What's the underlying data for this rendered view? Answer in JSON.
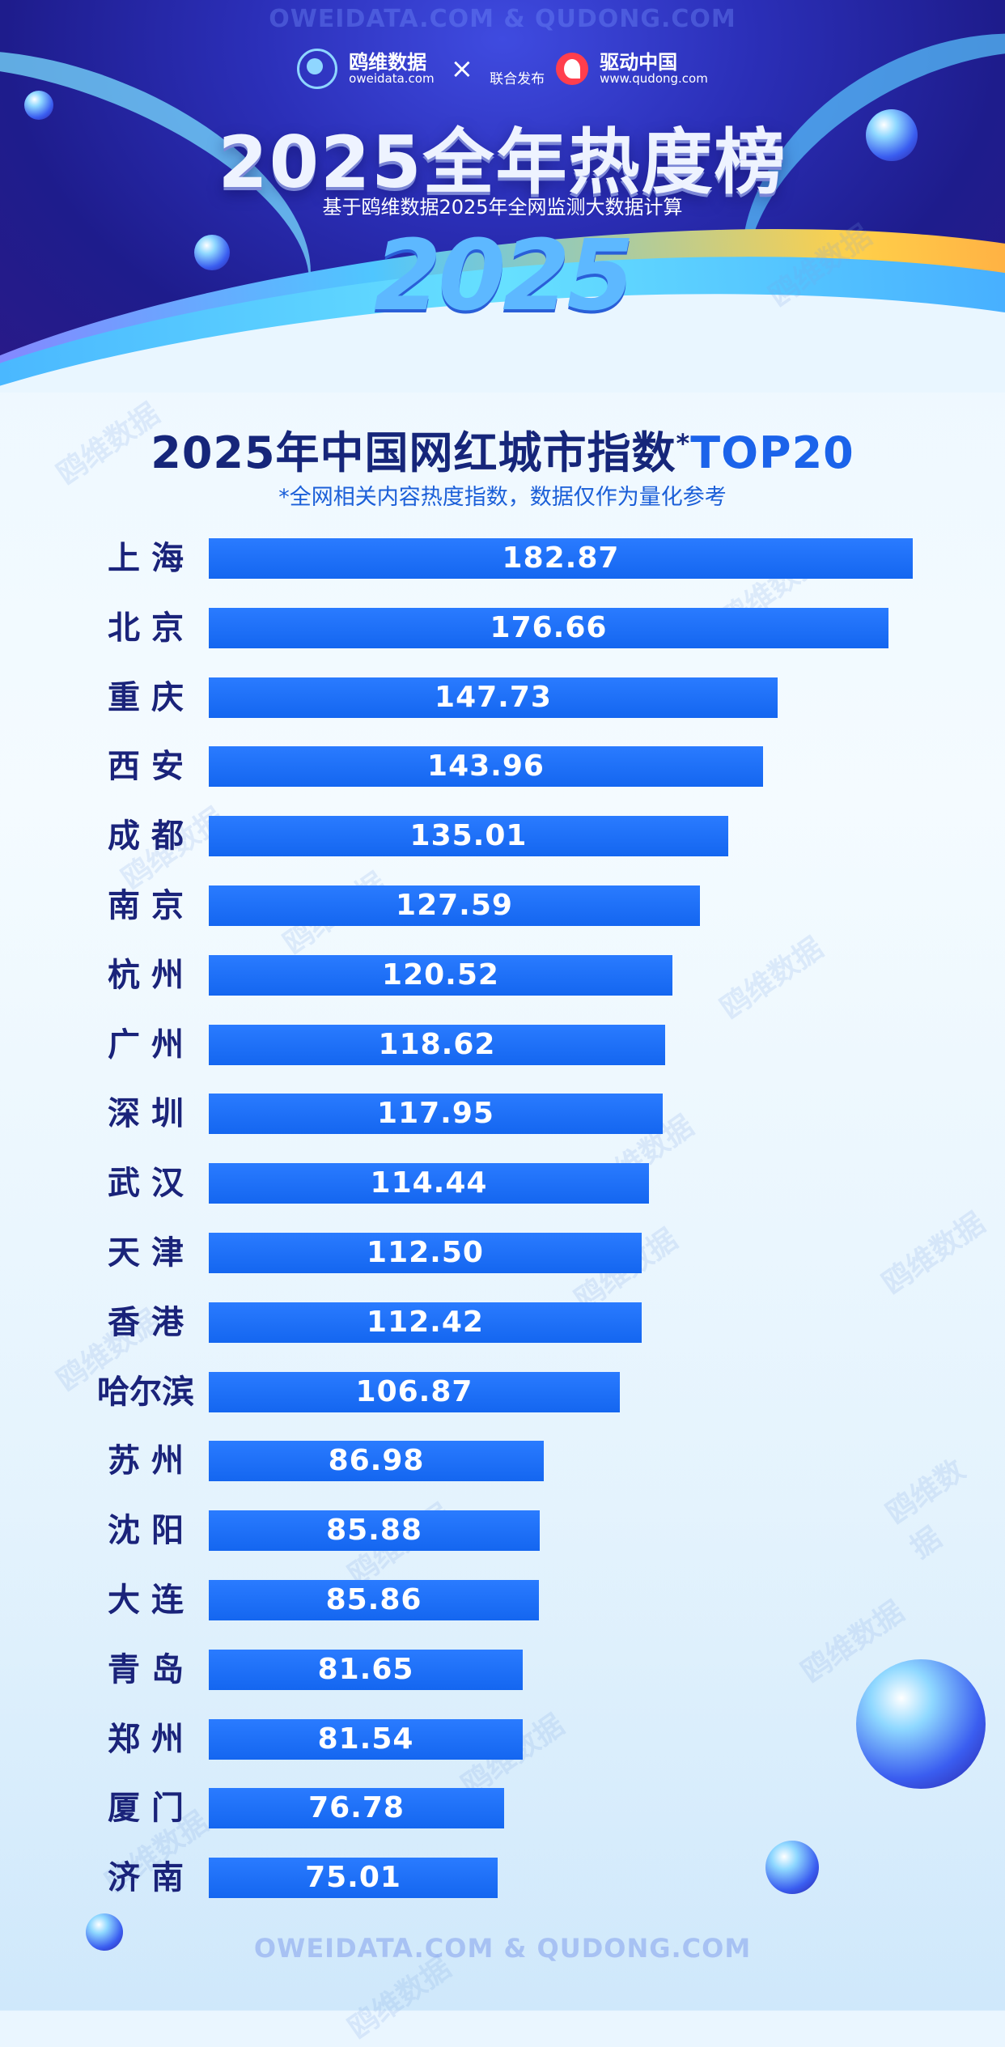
{
  "header": {
    "watermark_top": "OWEIDATA.COM  &  QUDONG.COM",
    "logo1_name": "鸥维数据",
    "logo1_url": "oweidata.com",
    "logo_x": "×",
    "logo_joint": "联合发布",
    "logo2_name": "驱动中国",
    "logo2_url": "www.qudong.com",
    "main_title": "2025全年热度榜",
    "subtitle": "基于鸥维数据2025年全网监测大数据计算",
    "big_year": "2025"
  },
  "watermark_text": "鸥维数据",
  "watermark_bottom": "OWEIDATA.COM  &  QUDONG.COM",
  "colors": {
    "bar": "#1466f0",
    "city": "#1a237a",
    "title": "#16267a",
    "accent": "#1b63ea"
  },
  "chart_data": {
    "type": "bar",
    "orientation": "horizontal",
    "title": "2025年中国网红城市指数",
    "title_mark": "*",
    "title_accent": "TOP20",
    "note": "*全网相关内容热度指数，数据仅作为量化参考",
    "xlim": [
      0,
      200
    ],
    "grid": false,
    "categories": [
      "上 海",
      "北 京",
      "重 庆",
      "西 安",
      "成 都",
      "南 京",
      "杭 州",
      "广 州",
      "深 圳",
      "武 汉",
      "天 津",
      "香 港",
      "哈尔滨",
      "苏 州",
      "沈 阳",
      "大 连",
      "青 岛",
      "郑 州",
      "厦 门",
      "济 南"
    ],
    "values": [
      182.87,
      176.66,
      147.73,
      143.96,
      135.01,
      127.59,
      120.52,
      118.62,
      117.95,
      114.44,
      112.5,
      112.42,
      106.87,
      86.98,
      85.88,
      85.86,
      81.65,
      81.54,
      76.78,
      75.01
    ],
    "labels": [
      "182.87",
      "176.66",
      "147.73",
      "143.96",
      "135.01",
      "127.59",
      "120.52",
      "118.62",
      "117.95",
      "114.44",
      "112.50",
      "112.42",
      "106.87",
      "86.98",
      "85.88",
      "85.86",
      "81.65",
      "81.54",
      "76.78",
      "75.01"
    ]
  }
}
